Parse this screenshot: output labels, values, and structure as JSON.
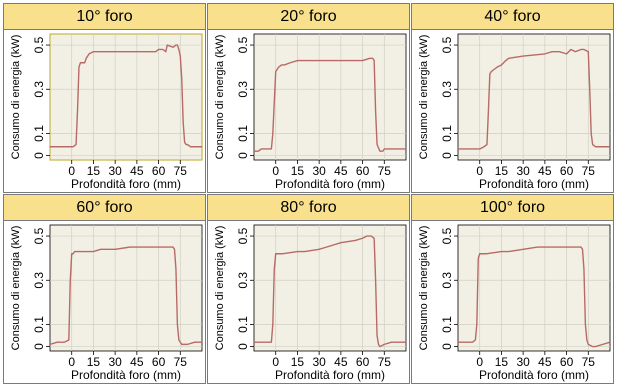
{
  "chart_data": [
    {
      "type": "line",
      "title": "10° foro",
      "xlabel": "Profondità foro (mm)",
      "ylabel": "Consumo di energia (kW)",
      "xticks": [
        0,
        15,
        30,
        45,
        60,
        75
      ],
      "yticks": [
        0,
        0.1,
        0.3,
        0.5
      ],
      "xlim": [
        -15,
        90
      ],
      "ylim": [
        -0.02,
        0.55
      ],
      "grid": true,
      "x": [
        -15,
        0,
        1,
        3,
        4,
        5,
        6,
        7,
        8,
        9,
        10,
        12,
        15,
        20,
        30,
        45,
        58,
        60,
        63,
        65,
        66,
        70,
        72,
        73,
        74,
        75,
        76,
        77,
        78,
        79,
        80,
        82,
        85,
        90
      ],
      "y": [
        0.04,
        0.04,
        0.04,
        0.05,
        0.2,
        0.4,
        0.42,
        0.42,
        0.42,
        0.42,
        0.44,
        0.46,
        0.47,
        0.47,
        0.47,
        0.47,
        0.47,
        0.48,
        0.48,
        0.47,
        0.5,
        0.49,
        0.5,
        0.5,
        0.48,
        0.45,
        0.35,
        0.15,
        0.06,
        0.05,
        0.05,
        0.04,
        0.04,
        0.04
      ]
    },
    {
      "type": "line",
      "title": "20° foro",
      "xlabel": "Profondità foro (mm)",
      "ylabel": "Consumo di energia (kW)",
      "xticks": [
        0,
        15,
        30,
        45,
        60,
        75
      ],
      "yticks": [
        0,
        0.1,
        0.3,
        0.5
      ],
      "xlim": [
        -15,
        90
      ],
      "ylim": [
        -0.02,
        0.55
      ],
      "grid": true,
      "x": [
        -15,
        -12,
        -10,
        -5,
        -3,
        -2,
        0,
        1,
        2,
        4,
        6,
        10,
        15,
        20,
        30,
        45,
        60,
        65,
        66,
        67,
        68,
        69,
        70,
        72,
        74,
        75,
        80,
        85,
        90
      ],
      "y": [
        0.02,
        0.02,
        0.03,
        0.03,
        0.03,
        0.1,
        0.38,
        0.39,
        0.4,
        0.41,
        0.41,
        0.42,
        0.43,
        0.43,
        0.43,
        0.43,
        0.43,
        0.44,
        0.44,
        0.44,
        0.43,
        0.2,
        0.05,
        0.02,
        0.02,
        0.03,
        0.03,
        0.03,
        0.03
      ]
    },
    {
      "type": "line",
      "title": "40° foro",
      "xlabel": "Profondità foro (mm)",
      "ylabel": "Consumo di energia (kW)",
      "xticks": [
        0,
        15,
        30,
        45,
        60,
        75
      ],
      "yticks": [
        0,
        0.1,
        0.3,
        0.5
      ],
      "xlim": [
        -15,
        90
      ],
      "ylim": [
        -0.02,
        0.55
      ],
      "grid": true,
      "x": [
        -15,
        0,
        3,
        5,
        6,
        7,
        8,
        10,
        12,
        15,
        18,
        20,
        30,
        45,
        50,
        55,
        60,
        63,
        66,
        70,
        72,
        75,
        76,
        77,
        78,
        80,
        85,
        90
      ],
      "y": [
        0.03,
        0.03,
        0.04,
        0.05,
        0.2,
        0.37,
        0.38,
        0.39,
        0.4,
        0.41,
        0.43,
        0.44,
        0.45,
        0.46,
        0.47,
        0.47,
        0.46,
        0.48,
        0.47,
        0.48,
        0.48,
        0.47,
        0.3,
        0.1,
        0.05,
        0.04,
        0.04,
        0.04
      ]
    },
    {
      "type": "line",
      "title": "60° foro",
      "xlabel": "Profondità foro (mm)",
      "ylabel": "Consumo di energia (kW)",
      "xticks": [
        0,
        15,
        30,
        45,
        60,
        75
      ],
      "yticks": [
        0,
        0.1,
        0.3,
        0.5
      ],
      "xlim": [
        -15,
        90
      ],
      "ylim": [
        -0.02,
        0.55
      ],
      "grid": true,
      "x": [
        -15,
        -10,
        -5,
        -2,
        -1,
        0,
        1,
        2,
        5,
        10,
        15,
        20,
        30,
        40,
        45,
        60,
        70,
        71,
        72,
        73,
        74,
        76,
        80,
        85,
        90
      ],
      "y": [
        0.01,
        0.02,
        0.02,
        0.03,
        0.3,
        0.42,
        0.42,
        0.43,
        0.43,
        0.43,
        0.43,
        0.44,
        0.44,
        0.45,
        0.45,
        0.45,
        0.45,
        0.44,
        0.35,
        0.1,
        0.03,
        0.01,
        0.01,
        0.02,
        0.02
      ]
    },
    {
      "type": "line",
      "title": "80° foro",
      "xlabel": "Profondità foro (mm)",
      "ylabel": "Consumo di energia (kW)",
      "xticks": [
        0,
        15,
        30,
        45,
        60,
        75
      ],
      "yticks": [
        0,
        0.1,
        0.3,
        0.5
      ],
      "xlim": [
        -15,
        90
      ],
      "ylim": [
        -0.02,
        0.55
      ],
      "grid": true,
      "x": [
        -15,
        -10,
        -5,
        -3,
        -2,
        -1,
        0,
        2,
        5,
        15,
        20,
        30,
        35,
        45,
        55,
        60,
        63,
        66,
        68,
        69,
        70,
        71,
        72,
        75,
        80,
        85,
        90
      ],
      "y": [
        0.02,
        0.02,
        0.02,
        0.02,
        0.1,
        0.35,
        0.42,
        0.42,
        0.42,
        0.43,
        0.43,
        0.44,
        0.45,
        0.47,
        0.48,
        0.49,
        0.5,
        0.5,
        0.49,
        0.3,
        0.05,
        0.01,
        0.0,
        0.01,
        0.02,
        0.02,
        0.02
      ]
    },
    {
      "type": "line",
      "title": "100° foro",
      "xlabel": "Profondità foro (mm)",
      "ylabel": "Consumo di energia (kW)",
      "xticks": [
        0,
        15,
        30,
        45,
        60,
        75
      ],
      "yticks": [
        0,
        0.1,
        0.3,
        0.5
      ],
      "xlim": [
        -15,
        90
      ],
      "ylim": [
        -0.02,
        0.55
      ],
      "grid": true,
      "x": [
        -15,
        -10,
        -5,
        -3,
        -2,
        -1,
        0,
        2,
        5,
        15,
        20,
        30,
        40,
        45,
        60,
        70,
        71,
        72,
        73,
        74,
        75,
        78,
        80,
        85,
        90
      ],
      "y": [
        0.02,
        0.02,
        0.02,
        0.03,
        0.1,
        0.4,
        0.42,
        0.42,
        0.42,
        0.43,
        0.43,
        0.44,
        0.45,
        0.45,
        0.45,
        0.45,
        0.44,
        0.35,
        0.1,
        0.03,
        0.01,
        0.0,
        0.0,
        0.01,
        0.02
      ]
    }
  ],
  "colors": {
    "header_bg": "#f8e08c",
    "plot_bg": "#f2f0e4",
    "grid": "#cfcfc3",
    "line": "#b86a66",
    "panel_border": "#7a7a7a",
    "highlight_border": "#c8b448"
  }
}
